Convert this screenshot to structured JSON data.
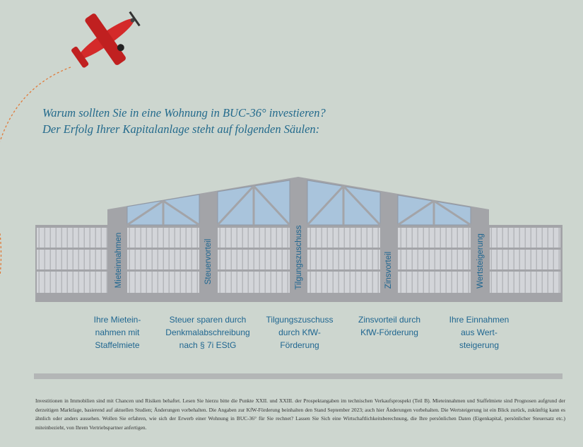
{
  "heading": {
    "line1": "Warum sollten Sie in eine Wohnung in BUC-36° investieren?",
    "line2": "Der Erfolg Ihrer Kapitalanlage steht auf folgenden Säulen:"
  },
  "pillars": [
    {
      "label": "Mieteinnahmen",
      "caption": [
        "Ihre Mietein-",
        "nahmen mit",
        "Staffelmiete"
      ]
    },
    {
      "label": "Steuervorteil",
      "caption": [
        "Steuer sparen durch",
        "Denkmalabschreibung",
        "nach § 7i EStG"
      ]
    },
    {
      "label": "Tilgungszuschuss",
      "caption": [
        "Tilgungszuschuss",
        "durch KfW-",
        "Förderung"
      ]
    },
    {
      "label": "Zinsvorteil",
      "caption": [
        "Zinsvorteil durch",
        "KfW-Förderung"
      ]
    },
    {
      "label": "Wertsteigerung",
      "caption": [
        "Ihre Einnahmen",
        "aus Wert-",
        "steigerung"
      ]
    }
  ],
  "disclaimer": "Investitionen in Immobilien sind mit Chancen und Risiken behaftet. Lesen Sie hierzu bitte die Punkte XXII. und XXIII. der Prospektangaben im technischen Verkaufsprospekt (Teil B). Mieteinnahmen und Staffelmiete sind Prognosen aufgrund der derzeitigen Marktlage, basierend auf aktuellen Studien; Änderungen vorbehalten. Die Angaben zur KfW-Förderung beinhalten den Stand September 2023; auch hier Änderungen vorbehalten. Die Wertsteigerung ist ein Blick zurück, zukünftig kann es ähnlich oder anders aussehen. Wollen Sie erfahren, wie sich der Erwerb einer Wohnung in BUC-36° für Sie rechnet? Lassen Sie Sich eine Wirtschaftlichkeitsberechnung, die Ihre persönlichen Daten (Eigenkapital, persönlicher Steuersatz etc.) miteinbezieht, von Ihrem Vertriebspartner anfertigen.",
  "colors": {
    "background": "#cdd6cf",
    "accent": "#236a8c",
    "building": "#a3a4a8",
    "glass": "#a9c4dc",
    "plane": "#d42a2a"
  }
}
